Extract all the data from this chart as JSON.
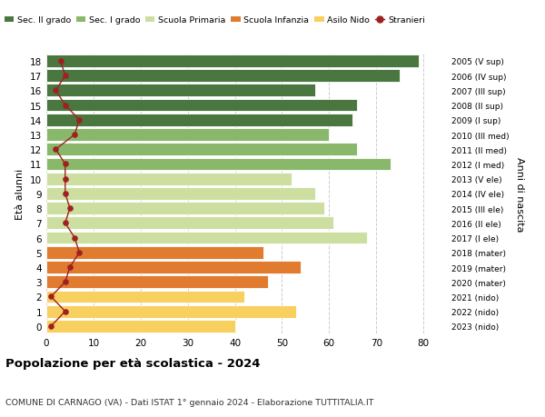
{
  "ages": [
    0,
    1,
    2,
    3,
    4,
    5,
    6,
    7,
    8,
    9,
    10,
    11,
    12,
    13,
    14,
    15,
    16,
    17,
    18
  ],
  "years": [
    "2023 (nido)",
    "2022 (nido)",
    "2021 (nido)",
    "2020 (mater)",
    "2019 (mater)",
    "2018 (mater)",
    "2017 (I ele)",
    "2016 (II ele)",
    "2015 (III ele)",
    "2014 (IV ele)",
    "2013 (V ele)",
    "2012 (I med)",
    "2011 (II med)",
    "2010 (III med)",
    "2009 (I sup)",
    "2008 (II sup)",
    "2007 (III sup)",
    "2006 (IV sup)",
    "2005 (V sup)"
  ],
  "values": [
    40,
    53,
    42,
    47,
    54,
    46,
    68,
    61,
    59,
    57,
    52,
    73,
    66,
    60,
    65,
    66,
    57,
    75,
    79
  ],
  "stranieri": [
    1,
    4,
    1,
    4,
    5,
    7,
    6,
    4,
    5,
    4,
    4,
    4,
    2,
    6,
    7,
    4,
    2,
    4,
    3
  ],
  "bar_colors": [
    "#f7d060",
    "#f7d060",
    "#f7d060",
    "#e07b30",
    "#e07b30",
    "#e07b30",
    "#ccdfa0",
    "#ccdfa0",
    "#ccdfa0",
    "#ccdfa0",
    "#ccdfa0",
    "#8ab86a",
    "#8ab86a",
    "#8ab86a",
    "#4a7740",
    "#4a7740",
    "#4a7740",
    "#4a7740",
    "#4a7740"
  ],
  "legend_labels": [
    "Sec. II grado",
    "Sec. I grado",
    "Scuola Primaria",
    "Scuola Infanzia",
    "Asilo Nido",
    "Stranieri"
  ],
  "legend_colors": [
    "#4a7740",
    "#8ab86a",
    "#ccdfa0",
    "#e07b30",
    "#f7d060",
    "#a02020"
  ],
  "title": "Popolazione per età scolastica - 2024",
  "subtitle": "COMUNE DI CARNAGO (VA) - Dati ISTAT 1° gennaio 2024 - Elaborazione TUTTITALIA.IT",
  "ylabel": "Età alunni",
  "right_ylabel": "Anni di nascita",
  "xlabel_values": [
    0,
    10,
    20,
    30,
    40,
    50,
    60,
    70,
    80
  ],
  "xlim": [
    0,
    85
  ],
  "stranieri_color": "#a02020",
  "background_color": "#ffffff",
  "grid_color": "#cccccc"
}
